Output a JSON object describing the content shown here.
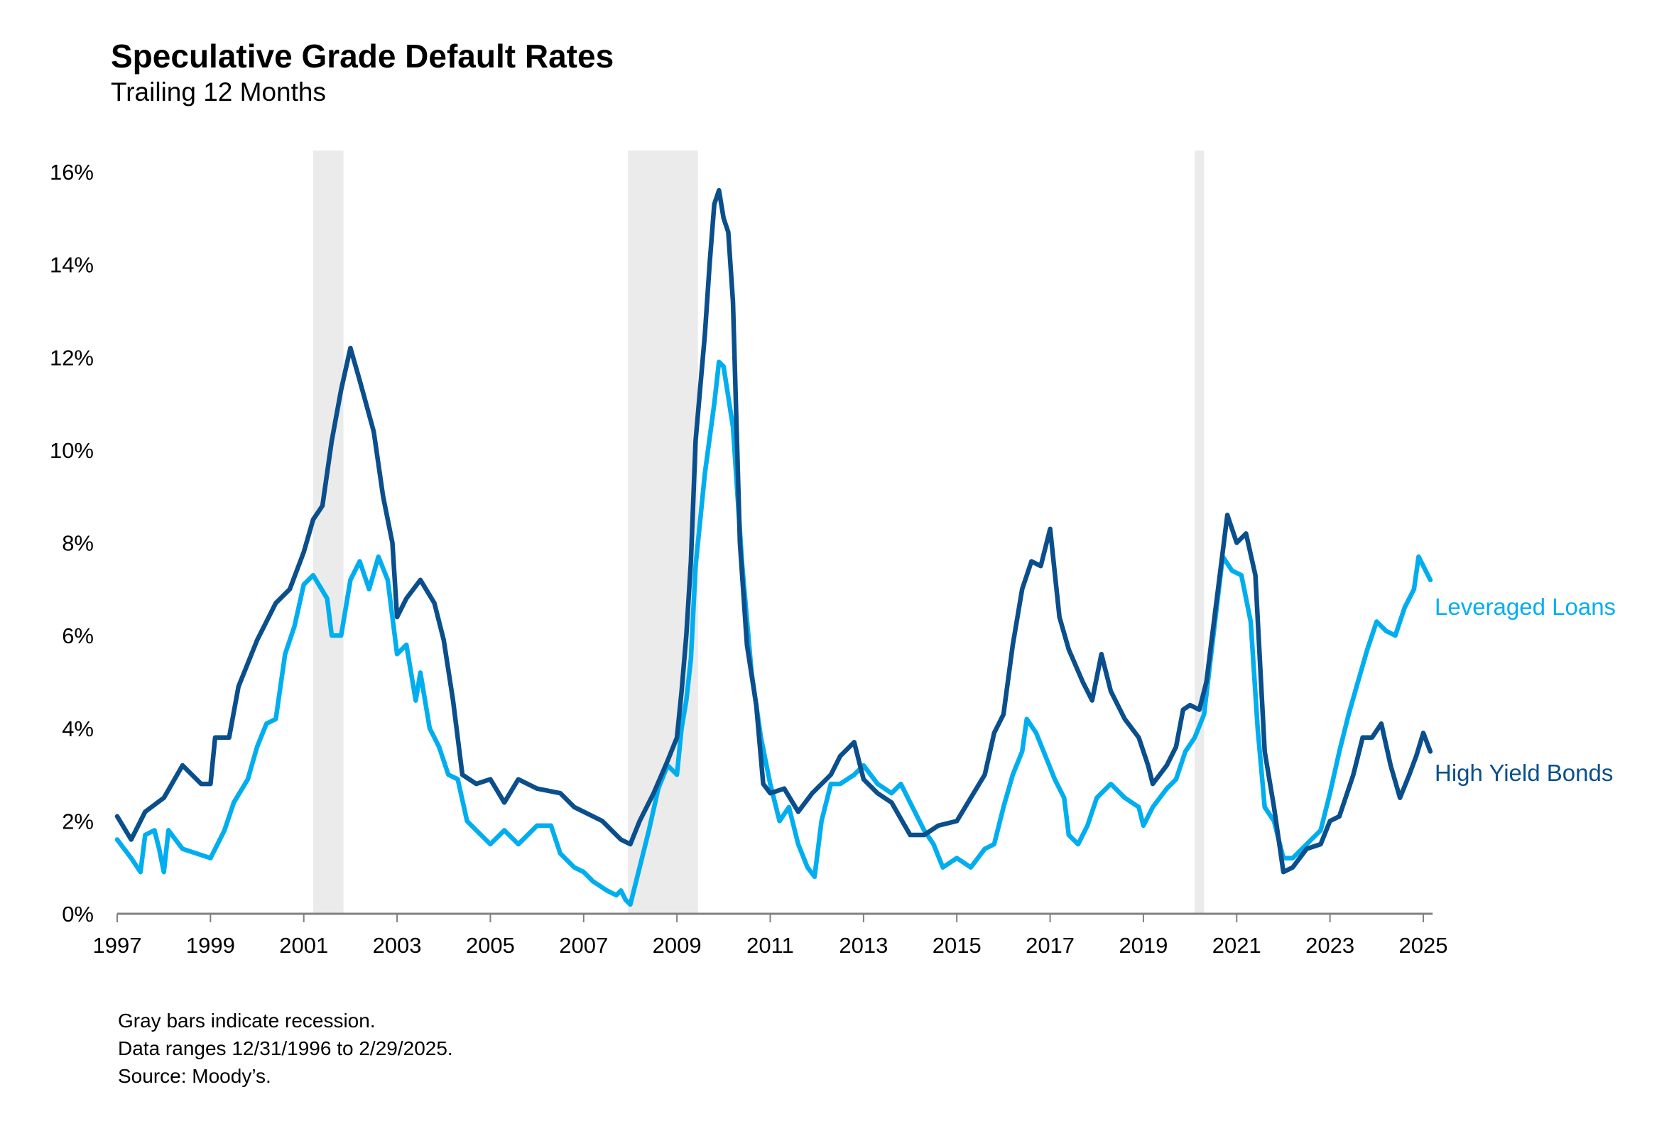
{
  "chart_data": {
    "type": "line",
    "title": "Speculative Grade Default Rates",
    "subtitle": "Trailing 12 Months",
    "xlabel": "",
    "ylabel": "",
    "xlim": [
      1997,
      2025.2
    ],
    "ylim": [
      0,
      16
    ],
    "x_ticks": [
      "1997",
      "1999",
      "2001",
      "2003",
      "2005",
      "2007",
      "2009",
      "2011",
      "2013",
      "2015",
      "2017",
      "2019",
      "2021",
      "2023",
      "2025"
    ],
    "y_ticks": [
      "0%",
      "2%",
      "4%",
      "6%",
      "8%",
      "10%",
      "12%",
      "14%",
      "16%"
    ],
    "grid": false,
    "legend": "inline-right",
    "colors": {
      "high_yield": "#0a4f8c",
      "leveraged_loans": "#00aeef",
      "recession": "#ebebeb",
      "axis": "#808080"
    },
    "recessions": [
      [
        2001.2,
        2001.85
      ],
      [
        2007.95,
        2009.45
      ],
      [
        2020.1,
        2020.3
      ]
    ],
    "series": [
      {
        "name": "High Yield Bonds",
        "key": "high_yield",
        "points": [
          [
            1997.0,
            2.1
          ],
          [
            1997.3,
            1.6
          ],
          [
            1997.6,
            2.2
          ],
          [
            1998.0,
            2.5
          ],
          [
            1998.4,
            3.2
          ],
          [
            1998.8,
            2.8
          ],
          [
            1999.0,
            2.8
          ],
          [
            1999.1,
            3.8
          ],
          [
            1999.4,
            3.8
          ],
          [
            1999.6,
            4.9
          ],
          [
            2000.0,
            5.9
          ],
          [
            2000.4,
            6.7
          ],
          [
            2000.7,
            7.0
          ],
          [
            2001.0,
            7.8
          ],
          [
            2001.2,
            8.5
          ],
          [
            2001.4,
            8.8
          ],
          [
            2001.6,
            10.2
          ],
          [
            2001.8,
            11.3
          ],
          [
            2002.0,
            12.2
          ],
          [
            2002.2,
            11.5
          ],
          [
            2002.5,
            10.4
          ],
          [
            2002.7,
            9.0
          ],
          [
            2002.9,
            8.0
          ],
          [
            2003.0,
            6.4
          ],
          [
            2003.2,
            6.8
          ],
          [
            2003.5,
            7.2
          ],
          [
            2003.8,
            6.7
          ],
          [
            2004.0,
            5.9
          ],
          [
            2004.2,
            4.6
          ],
          [
            2004.4,
            3.0
          ],
          [
            2004.7,
            2.8
          ],
          [
            2005.0,
            2.9
          ],
          [
            2005.3,
            2.4
          ],
          [
            2005.6,
            2.9
          ],
          [
            2006.0,
            2.7
          ],
          [
            2006.5,
            2.6
          ],
          [
            2006.8,
            2.3
          ],
          [
            2007.0,
            2.2
          ],
          [
            2007.4,
            2.0
          ],
          [
            2007.8,
            1.6
          ],
          [
            2008.0,
            1.5
          ],
          [
            2008.2,
            2.0
          ],
          [
            2008.5,
            2.6
          ],
          [
            2008.8,
            3.3
          ],
          [
            2009.0,
            3.8
          ],
          [
            2009.1,
            4.8
          ],
          [
            2009.2,
            6.0
          ],
          [
            2009.3,
            7.6
          ],
          [
            2009.4,
            10.2
          ],
          [
            2009.6,
            12.5
          ],
          [
            2009.7,
            14.0
          ],
          [
            2009.8,
            15.3
          ],
          [
            2009.9,
            15.6
          ],
          [
            2010.0,
            15.0
          ],
          [
            2010.1,
            14.7
          ],
          [
            2010.2,
            13.2
          ],
          [
            2010.35,
            8.0
          ],
          [
            2010.5,
            5.8
          ],
          [
            2010.7,
            4.5
          ],
          [
            2010.85,
            2.8
          ],
          [
            2011.0,
            2.6
          ],
          [
            2011.3,
            2.7
          ],
          [
            2011.6,
            2.2
          ],
          [
            2011.9,
            2.6
          ],
          [
            2012.3,
            3.0
          ],
          [
            2012.5,
            3.4
          ],
          [
            2012.8,
            3.7
          ],
          [
            2013.0,
            2.9
          ],
          [
            2013.3,
            2.6
          ],
          [
            2013.6,
            2.4
          ],
          [
            2014.0,
            1.7
          ],
          [
            2014.3,
            1.7
          ],
          [
            2014.6,
            1.9
          ],
          [
            2015.0,
            2.0
          ],
          [
            2015.3,
            2.5
          ],
          [
            2015.6,
            3.0
          ],
          [
            2015.8,
            3.9
          ],
          [
            2016.0,
            4.3
          ],
          [
            2016.2,
            5.8
          ],
          [
            2016.4,
            7.0
          ],
          [
            2016.6,
            7.6
          ],
          [
            2016.8,
            7.5
          ],
          [
            2017.0,
            8.3
          ],
          [
            2017.2,
            6.4
          ],
          [
            2017.4,
            5.7
          ],
          [
            2017.7,
            5.0
          ],
          [
            2017.9,
            4.6
          ],
          [
            2018.1,
            5.6
          ],
          [
            2018.3,
            4.8
          ],
          [
            2018.6,
            4.2
          ],
          [
            2018.9,
            3.8
          ],
          [
            2019.1,
            3.2
          ],
          [
            2019.2,
            2.8
          ],
          [
            2019.5,
            3.2
          ],
          [
            2019.7,
            3.6
          ],
          [
            2019.85,
            4.4
          ],
          [
            2020.0,
            4.5
          ],
          [
            2020.2,
            4.4
          ],
          [
            2020.35,
            5.0
          ],
          [
            2020.6,
            7.0
          ],
          [
            2020.8,
            8.6
          ],
          [
            2021.0,
            8.0
          ],
          [
            2021.2,
            8.2
          ],
          [
            2021.4,
            7.3
          ],
          [
            2021.6,
            3.5
          ],
          [
            2021.8,
            2.3
          ],
          [
            2022.0,
            0.9
          ],
          [
            2022.2,
            1.0
          ],
          [
            2022.5,
            1.4
          ],
          [
            2022.8,
            1.5
          ],
          [
            2023.0,
            2.0
          ],
          [
            2023.2,
            2.1
          ],
          [
            2023.5,
            3.0
          ],
          [
            2023.7,
            3.8
          ],
          [
            2023.9,
            3.8
          ],
          [
            2024.1,
            4.1
          ],
          [
            2024.3,
            3.2
          ],
          [
            2024.5,
            2.5
          ],
          [
            2024.7,
            3.0
          ],
          [
            2024.85,
            3.4
          ],
          [
            2025.0,
            3.9
          ],
          [
            2025.15,
            3.5
          ]
        ]
      },
      {
        "name": "Leveraged Loans",
        "key": "leveraged_loans",
        "points": [
          [
            1997.0,
            1.6
          ],
          [
            1997.3,
            1.2
          ],
          [
            1997.5,
            0.9
          ],
          [
            1997.6,
            1.7
          ],
          [
            1997.8,
            1.8
          ],
          [
            1997.9,
            1.4
          ],
          [
            1998.0,
            0.9
          ],
          [
            1998.1,
            1.8
          ],
          [
            1998.4,
            1.4
          ],
          [
            1998.7,
            1.3
          ],
          [
            1999.0,
            1.2
          ],
          [
            1999.3,
            1.8
          ],
          [
            1999.5,
            2.4
          ],
          [
            1999.8,
            2.9
          ],
          [
            2000.0,
            3.6
          ],
          [
            2000.2,
            4.1
          ],
          [
            2000.4,
            4.2
          ],
          [
            2000.6,
            5.6
          ],
          [
            2000.8,
            6.2
          ],
          [
            2001.0,
            7.1
          ],
          [
            2001.2,
            7.3
          ],
          [
            2001.5,
            6.8
          ],
          [
            2001.6,
            6.0
          ],
          [
            2001.8,
            6.0
          ],
          [
            2002.0,
            7.2
          ],
          [
            2002.2,
            7.6
          ],
          [
            2002.4,
            7.0
          ],
          [
            2002.6,
            7.7
          ],
          [
            2002.8,
            7.2
          ],
          [
            2003.0,
            5.6
          ],
          [
            2003.2,
            5.8
          ],
          [
            2003.4,
            4.6
          ],
          [
            2003.5,
            5.2
          ],
          [
            2003.7,
            4.0
          ],
          [
            2003.9,
            3.6
          ],
          [
            2004.1,
            3.0
          ],
          [
            2004.3,
            2.9
          ],
          [
            2004.5,
            2.0
          ],
          [
            2004.8,
            1.7
          ],
          [
            2005.0,
            1.5
          ],
          [
            2005.3,
            1.8
          ],
          [
            2005.6,
            1.5
          ],
          [
            2005.8,
            1.7
          ],
          [
            2006.0,
            1.9
          ],
          [
            2006.3,
            1.9
          ],
          [
            2006.5,
            1.3
          ],
          [
            2006.8,
            1.0
          ],
          [
            2007.0,
            0.9
          ],
          [
            2007.2,
            0.7
          ],
          [
            2007.5,
            0.5
          ],
          [
            2007.7,
            0.4
          ],
          [
            2007.8,
            0.5
          ],
          [
            2007.9,
            0.3
          ],
          [
            2008.0,
            0.2
          ],
          [
            2008.2,
            1.0
          ],
          [
            2008.4,
            1.8
          ],
          [
            2008.6,
            2.7
          ],
          [
            2008.8,
            3.2
          ],
          [
            2009.0,
            3.0
          ],
          [
            2009.1,
            4.0
          ],
          [
            2009.2,
            4.6
          ],
          [
            2009.3,
            5.5
          ],
          [
            2009.4,
            7.5
          ],
          [
            2009.6,
            9.5
          ],
          [
            2009.8,
            11.0
          ],
          [
            2009.9,
            11.9
          ],
          [
            2010.0,
            11.8
          ],
          [
            2010.2,
            10.5
          ],
          [
            2010.4,
            7.5
          ],
          [
            2010.6,
            5.2
          ],
          [
            2010.8,
            3.8
          ],
          [
            2011.0,
            2.8
          ],
          [
            2011.2,
            2.0
          ],
          [
            2011.4,
            2.3
          ],
          [
            2011.6,
            1.5
          ],
          [
            2011.8,
            1.0
          ],
          [
            2011.95,
            0.8
          ],
          [
            2012.1,
            2.0
          ],
          [
            2012.3,
            2.8
          ],
          [
            2012.5,
            2.8
          ],
          [
            2012.8,
            3.0
          ],
          [
            2013.0,
            3.2
          ],
          [
            2013.3,
            2.8
          ],
          [
            2013.6,
            2.6
          ],
          [
            2013.8,
            2.8
          ],
          [
            2014.0,
            2.4
          ],
          [
            2014.3,
            1.8
          ],
          [
            2014.5,
            1.5
          ],
          [
            2014.7,
            1.0
          ],
          [
            2015.0,
            1.2
          ],
          [
            2015.3,
            1.0
          ],
          [
            2015.6,
            1.4
          ],
          [
            2015.8,
            1.5
          ],
          [
            2016.0,
            2.3
          ],
          [
            2016.2,
            3.0
          ],
          [
            2016.4,
            3.5
          ],
          [
            2016.5,
            4.2
          ],
          [
            2016.7,
            3.9
          ],
          [
            2016.9,
            3.4
          ],
          [
            2017.1,
            2.9
          ],
          [
            2017.3,
            2.5
          ],
          [
            2017.4,
            1.7
          ],
          [
            2017.6,
            1.5
          ],
          [
            2017.8,
            1.9
          ],
          [
            2018.0,
            2.5
          ],
          [
            2018.3,
            2.8
          ],
          [
            2018.6,
            2.5
          ],
          [
            2018.9,
            2.3
          ],
          [
            2019.0,
            1.9
          ],
          [
            2019.2,
            2.3
          ],
          [
            2019.5,
            2.7
          ],
          [
            2019.7,
            2.9
          ],
          [
            2019.9,
            3.5
          ],
          [
            2020.1,
            3.8
          ],
          [
            2020.3,
            4.3
          ],
          [
            2020.5,
            6.0
          ],
          [
            2020.7,
            7.7
          ],
          [
            2020.9,
            7.4
          ],
          [
            2021.1,
            7.3
          ],
          [
            2021.3,
            6.3
          ],
          [
            2021.45,
            4.0
          ],
          [
            2021.6,
            2.3
          ],
          [
            2021.8,
            2.0
          ],
          [
            2022.0,
            1.2
          ],
          [
            2022.2,
            1.2
          ],
          [
            2022.5,
            1.5
          ],
          [
            2022.8,
            1.8
          ],
          [
            2023.0,
            2.6
          ],
          [
            2023.2,
            3.5
          ],
          [
            2023.4,
            4.3
          ],
          [
            2023.6,
            5.0
          ],
          [
            2023.8,
            5.7
          ],
          [
            2024.0,
            6.3
          ],
          [
            2024.2,
            6.1
          ],
          [
            2024.4,
            6.0
          ],
          [
            2024.6,
            6.6
          ],
          [
            2024.8,
            7.0
          ],
          [
            2024.9,
            7.7
          ],
          [
            2025.0,
            7.5
          ],
          [
            2025.15,
            7.2
          ]
        ]
      }
    ],
    "footnotes": [
      "Gray bars indicate recession.",
      "Data ranges 12/31/1996 to 2/29/2025.",
      "Source: Moody’s."
    ]
  }
}
